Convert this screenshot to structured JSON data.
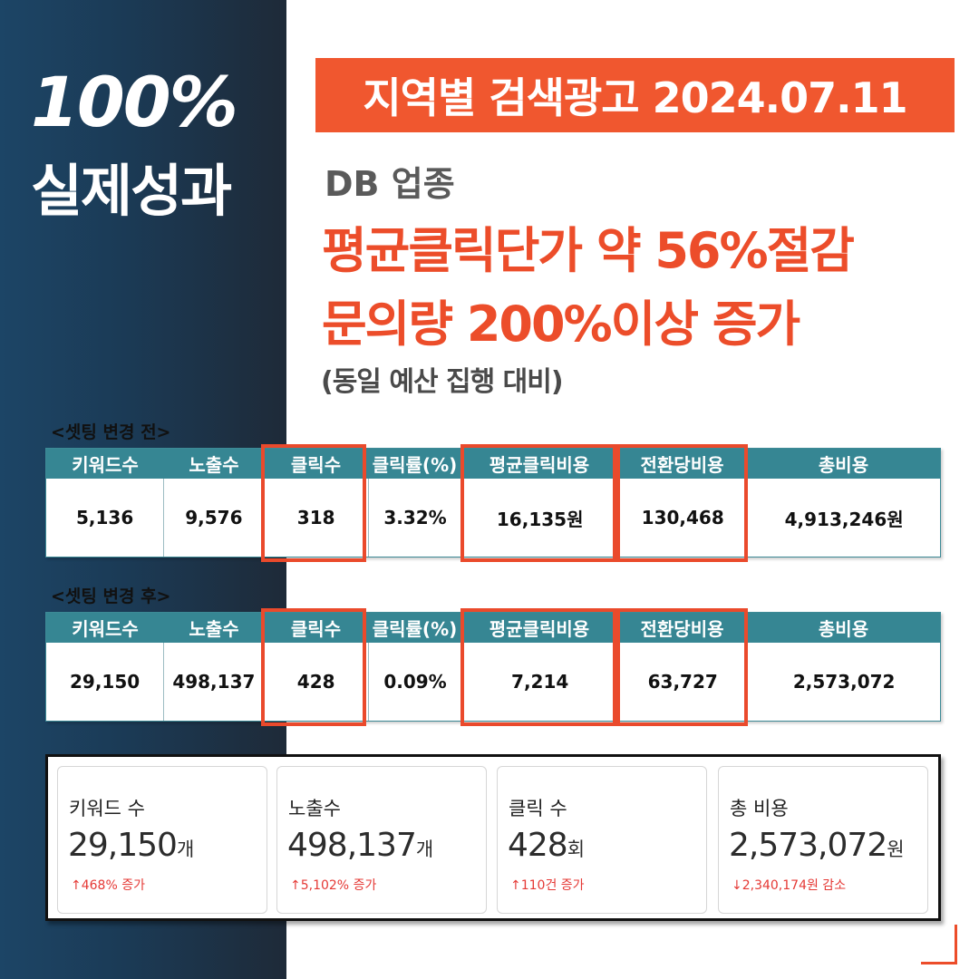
{
  "hero": {
    "percent": "100%",
    "label": "실제성과"
  },
  "banner": {
    "title": "지역별 검색광고 2024.07.11"
  },
  "industry": "DB 업종",
  "headline": {
    "line1": "평균클릭단가 약 56%절감",
    "line2": "문의량 200%이상 증가"
  },
  "note": "(동일 예산 집행 대비)",
  "table_columns": [
    "키워드수",
    "노출수",
    "클릭수",
    "클릭률(%)",
    "평균클릭비용",
    "전환당비용",
    "총비용"
  ],
  "before": {
    "caption": "<셋팅 변경 전>",
    "values": [
      "5,136",
      "9,576",
      "318",
      "3.32%",
      "16,135원",
      "130,468",
      "4,913,246원"
    ]
  },
  "after": {
    "caption": "<셋팅 변경 후>",
    "values": [
      "29,150",
      "498,137",
      "428",
      "0.09%",
      "7,214",
      "63,727",
      "2,573,072"
    ]
  },
  "metrics": [
    {
      "label": "키워드 수",
      "value": "29,150",
      "unit": "개",
      "change": "↑468% 증가"
    },
    {
      "label": "노출수",
      "value": "498,137",
      "unit": "개",
      "change": "↑5,102% 증가"
    },
    {
      "label": "클릭 수",
      "value": "428",
      "unit": "회",
      "change": "↑110건 증가"
    },
    {
      "label": "총 비용",
      "value": "2,573,072",
      "unit": "원",
      "change": "↓2,340,174원 감소"
    }
  ],
  "colors": {
    "accent": "#f0572f",
    "table_header": "#368693",
    "left_panel": "#1c4566",
    "increase": "#e53935"
  }
}
